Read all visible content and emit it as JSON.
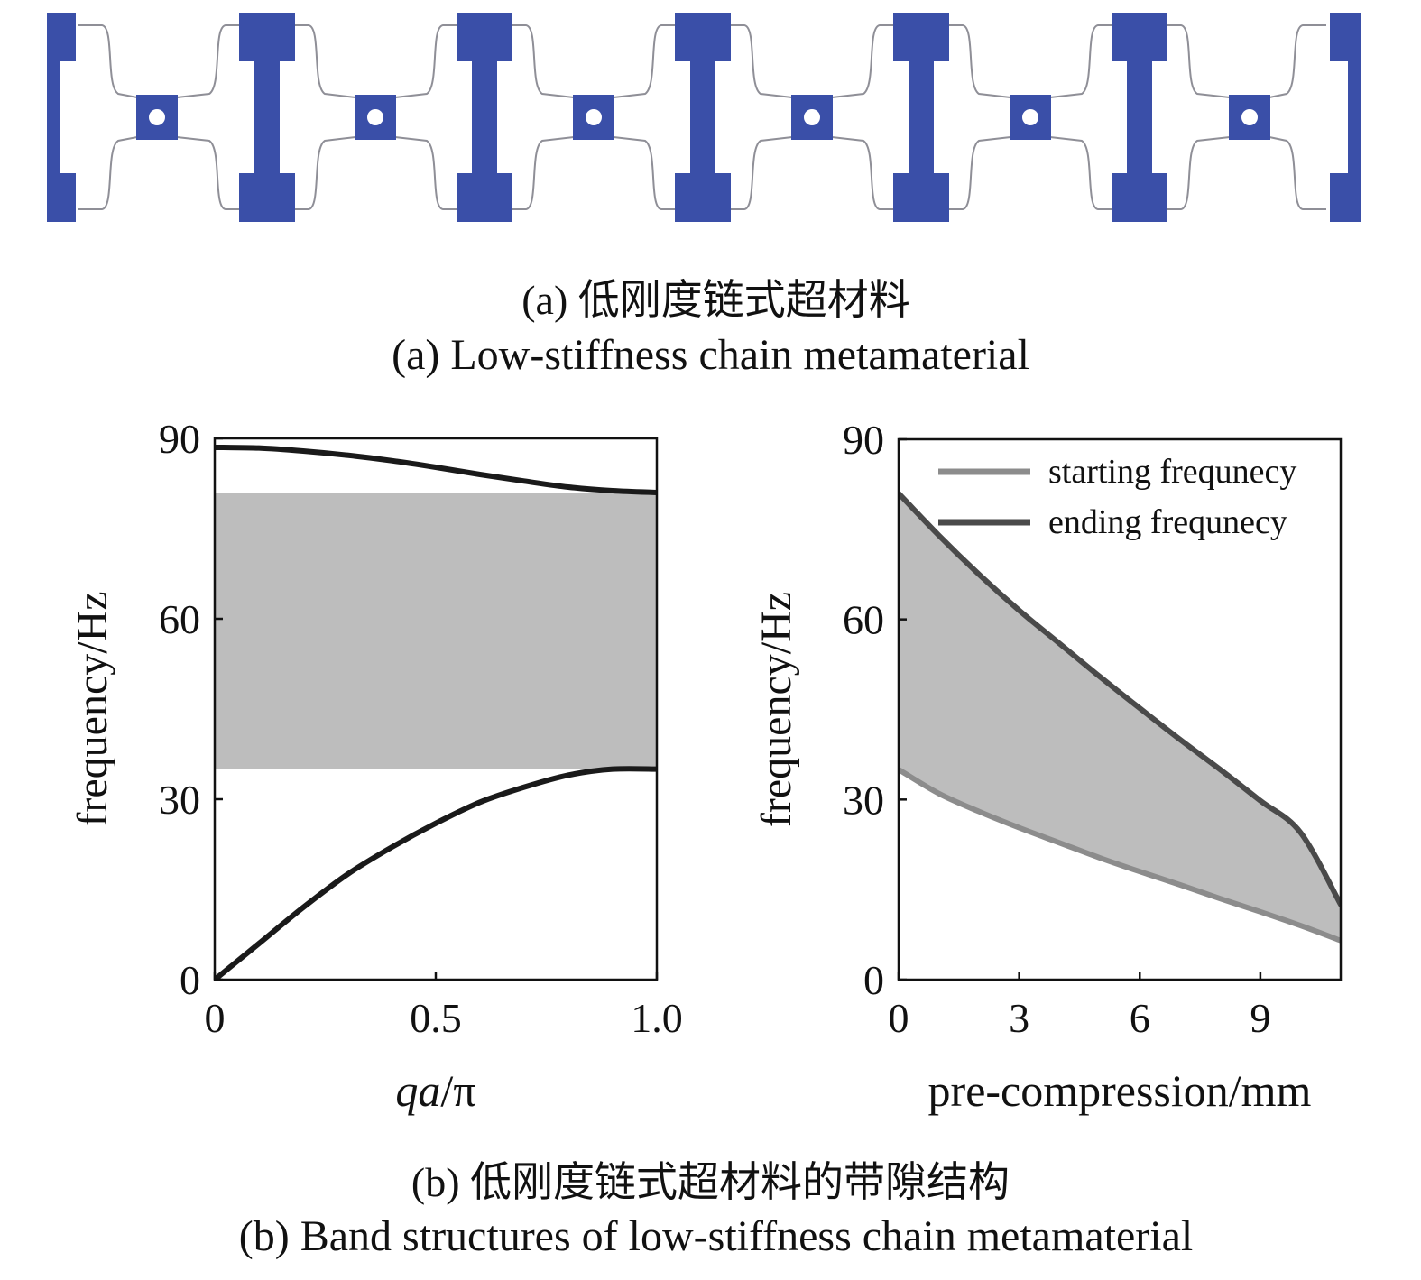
{
  "figure_a": {
    "caption_zh": "(a) 低刚度链式超材料",
    "caption_en": "(a) Low-stiffness chain metamaterial",
    "colors": {
      "block": "#3a4fa8",
      "ligament": "#8f8f97",
      "hole": "#ffffff"
    }
  },
  "figure_b": {
    "caption_zh": "(b) 低刚度链式超材料的带隙结构",
    "caption_en": "(b) Band structures of low-stiffness chain metamaterial"
  },
  "chart_data": [
    {
      "type": "line",
      "xlabel": "qa/π",
      "xlabel_italic": "qa",
      "xlabel_rest": "/π",
      "ylabel": "frequency/Hz",
      "xlim": [
        0,
        1.0
      ],
      "ylim": [
        0,
        90
      ],
      "xticks": [
        0,
        0.5,
        1.0
      ],
      "xtick_labels": [
        "0",
        "0.5",
        "1.0"
      ],
      "yticks": [
        0,
        30,
        60,
        90
      ],
      "ytick_labels": [
        "0",
        "30",
        "60",
        "90"
      ],
      "grid": false,
      "band_gap": {
        "lower": 35,
        "upper": 81,
        "color": "#bdbdbd"
      },
      "series": [
        {
          "x": [
            0,
            0.1,
            0.2,
            0.3,
            0.4,
            0.5,
            0.6,
            0.7,
            0.8,
            0.9,
            1.0
          ],
          "y": [
            0,
            6,
            12,
            17.5,
            22,
            26,
            29.5,
            32,
            34,
            35,
            35
          ],
          "color": "#1a1a1a"
        },
        {
          "x": [
            0,
            0.1,
            0.2,
            0.3,
            0.4,
            0.5,
            0.6,
            0.7,
            0.8,
            0.9,
            1.0
          ],
          "y": [
            88.5,
            88.4,
            87.9,
            87.2,
            86.3,
            85.2,
            84.0,
            82.9,
            81.9,
            81.3,
            81.0
          ],
          "color": "#1a1a1a"
        }
      ]
    },
    {
      "type": "area",
      "xlabel": "pre-compression/mm",
      "ylabel": "frequency/Hz",
      "xlim": [
        0,
        11
      ],
      "ylim": [
        0,
        90
      ],
      "xticks": [
        0,
        3,
        6,
        9
      ],
      "xtick_labels": [
        "0",
        "3",
        "6",
        "9"
      ],
      "yticks": [
        0,
        30,
        60,
        90
      ],
      "ytick_labels": [
        "0",
        "30",
        "60",
        "90"
      ],
      "grid": false,
      "legend_position": "top-right",
      "fill_color": "#bdbdbd",
      "series": [
        {
          "name": "starting frequnecy",
          "x": [
            0,
            1,
            2,
            3,
            4,
            5,
            6,
            7,
            8,
            9,
            10,
            11
          ],
          "y": [
            35,
            31,
            28,
            25.3,
            22.8,
            20.3,
            18.0,
            15.8,
            13.5,
            11.3,
            9.0,
            6.5
          ],
          "color": "#8c8c8c"
        },
        {
          "name": "ending frequnecy",
          "x": [
            0,
            1,
            2,
            3,
            4,
            5,
            6,
            7,
            8,
            9,
            10,
            11
          ],
          "y": [
            81,
            74,
            67.5,
            61.5,
            56,
            50.5,
            45.2,
            40,
            35,
            29.8,
            24.5,
            12.5
          ],
          "color": "#4a4a4a"
        }
      ]
    }
  ]
}
